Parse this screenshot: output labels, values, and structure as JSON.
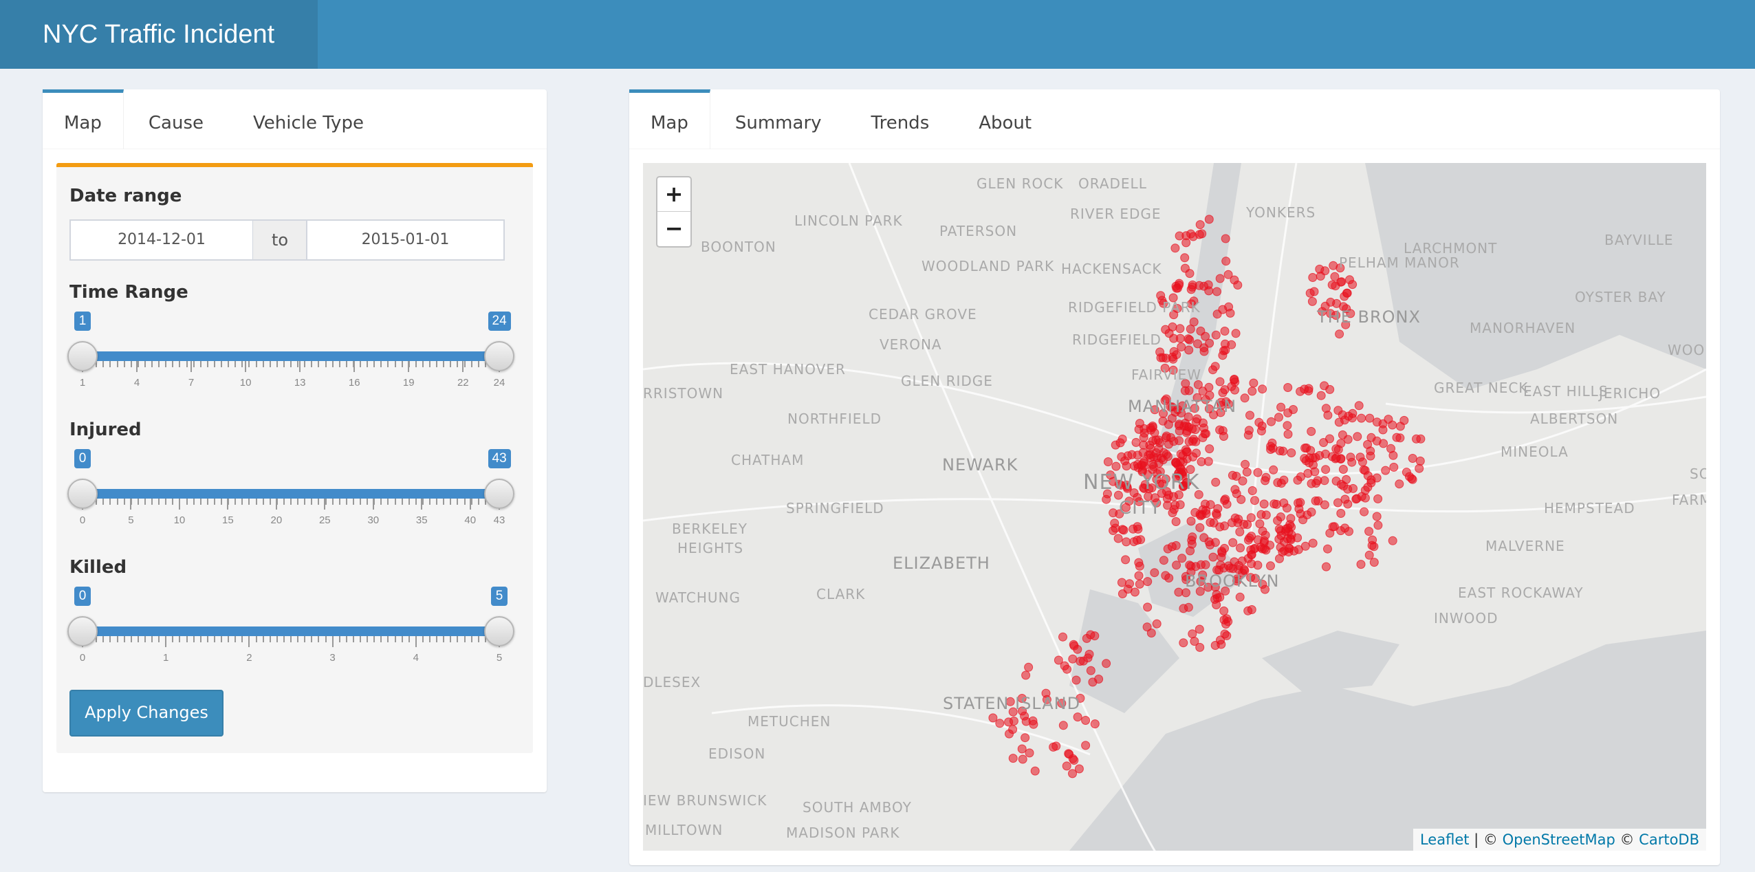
{
  "app": {
    "title": "NYC Traffic Incident"
  },
  "left_tabs": [
    {
      "label": "Map",
      "active": true
    },
    {
      "label": "Cause",
      "active": false
    },
    {
      "label": "Vehicle Type",
      "active": false
    }
  ],
  "right_tabs": [
    {
      "label": "Map",
      "active": true
    },
    {
      "label": "Summary",
      "active": false
    },
    {
      "label": "Trends",
      "active": false
    },
    {
      "label": "About",
      "active": false
    }
  ],
  "controls": {
    "date_range": {
      "label": "Date range",
      "start": "2014-12-01",
      "separator": "to",
      "end": "2015-01-01"
    },
    "time_range": {
      "label": "Time Range",
      "min": 1,
      "max": 24,
      "low": 1,
      "high": 24,
      "ticks": [
        "1",
        "4",
        "7",
        "10",
        "13",
        "16",
        "19",
        "22",
        "24"
      ],
      "low_label": "1",
      "high_label": "24"
    },
    "injured": {
      "label": "Injured",
      "min": 0,
      "max": 43,
      "low": 0,
      "high": 43,
      "ticks": [
        "0",
        "5",
        "10",
        "15",
        "20",
        "25",
        "30",
        "35",
        "40",
        "43"
      ],
      "low_label": "0",
      "high_label": "43"
    },
    "killed": {
      "label": "Killed",
      "min": 0,
      "max": 5,
      "low": 0,
      "high": 5,
      "ticks": [
        "0",
        "1",
        "2",
        "3",
        "4",
        "5"
      ],
      "low_label": "0",
      "high_label": "5"
    },
    "apply_label": "Apply Changes"
  },
  "map": {
    "zoom_in": "+",
    "zoom_out": "−",
    "place_labels": [
      "GLEN ROCK",
      "ORADELL",
      "YONKERS",
      "LARCHMONT",
      "BAYVILLE",
      "LINCOLN PARK",
      "PATERSON",
      "RIVER EDGE",
      "PELHAM MANOR",
      "BOONTON",
      "WOODLAND PARK",
      "HACKENSACK",
      "OYSTER BAY",
      "CEDAR GROVE",
      "RIDGEFIELD PARK",
      "THE BRONX",
      "MANORHAVEN",
      "VERONA",
      "RIDGEFIELD",
      "WOODB",
      "EAST HANOVER",
      "GLEN RIDGE",
      "FAIRVIEW",
      "RRISTOWN",
      "GREAT NECK",
      "EAST HILLS",
      "JERICHO",
      "NORTHFIELD",
      "MANHATTAN",
      "ALBERTSON",
      "CHATHAM",
      "NEWARK",
      "MINEOLA",
      "NEW YORK",
      "CITY",
      "SPRINGFIELD",
      "HEMPSTEAD",
      "FARMI",
      "SO",
      "BERKELEY",
      "HEIGHTS",
      "ELIZABETH",
      "MALVERNE",
      "BROOKLYN",
      "WATCHUNG",
      "CLARK",
      "EAST ROCKAWAY",
      "INWOOD",
      "DLESEX",
      "STATEN ISLAND",
      "METUCHEN",
      "EDISON",
      "IEW BRUNSWICK",
      "SOUTH AMBOY",
      "MILLTOWN",
      "MADISON PARK"
    ],
    "attribution": {
      "leaflet": "Leaflet",
      "sep1": " | © ",
      "osm": "OpenStreetMap",
      "sep2": " © ",
      "carto": "CartoDB"
    },
    "marker_color": "#e8101e"
  },
  "colors": {
    "header": "#3c8dbc",
    "logo_bg": "#367fa9",
    "accent": "#3c8dbc",
    "warning": "#f39c12",
    "slider": "#428bca"
  }
}
